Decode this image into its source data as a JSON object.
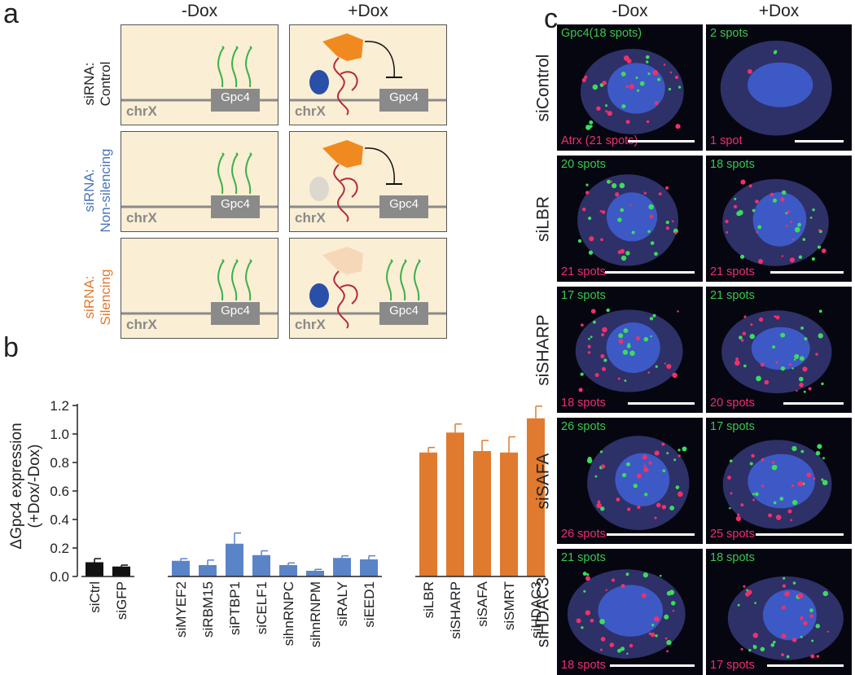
{
  "panel_a": {
    "letter": "a",
    "col_minus": "-Dox",
    "col_plus": "+Dox",
    "gene": "Gpc4",
    "chrom": "chrX",
    "rows": [
      {
        "line1": "siRNA:",
        "line2": "Control",
        "color": "#222222"
      },
      {
        "line1": "siRNA:",
        "line2": "Non-silencing",
        "color": "#4a74b8"
      },
      {
        "line1": "siRNA:",
        "line2": "Silencing",
        "color": "#e07a2e"
      }
    ]
  },
  "panel_b": {
    "letter": "b"
  },
  "chart_data": {
    "type": "bar",
    "title": "",
    "ylabel": "ΔGpc4 expression (+Dox/-Dox)",
    "ylabel_line1": "ΔGpc4 expression",
    "ylabel_line2": "(+Dox/-Dox)",
    "xlabel": "",
    "ylim": [
      0,
      1.2
    ],
    "yticks": [
      "0.0",
      "0.2",
      "0.4",
      "0.6",
      "0.8",
      "1.0",
      "1.2"
    ],
    "yticks_values": [
      0.0,
      0.2,
      0.4,
      0.6,
      0.8,
      1.0,
      1.2
    ],
    "groups": [
      {
        "name": "controls",
        "color": "#111111",
        "categories": [
          "siCtrl",
          "siGFP"
        ],
        "values": [
          0.1,
          0.07
        ],
        "errors": [
          0.025,
          0.01
        ]
      },
      {
        "name": "non-silencing",
        "color": "#5b84c8",
        "categories": [
          "siMYEF2",
          "siRBM15",
          "siPTBP1",
          "siCELF1",
          "sihnRNPC",
          "sihnRNPM",
          "siRALY",
          "siEED1"
        ],
        "values": [
          0.11,
          0.08,
          0.23,
          0.15,
          0.08,
          0.04,
          0.13,
          0.12
        ],
        "errors": [
          0.015,
          0.035,
          0.075,
          0.03,
          0.015,
          0.01,
          0.015,
          0.025
        ]
      },
      {
        "name": "silencing",
        "color": "#e07a2e",
        "categories": [
          "siLBR",
          "siSHARP",
          "siSAFA",
          "siSMRT",
          "siHDAC3"
        ],
        "values": [
          0.87,
          1.01,
          0.88,
          0.87,
          1.11
        ],
        "errors": [
          0.035,
          0.06,
          0.075,
          0.11,
          0.085
        ]
      }
    ]
  },
  "panel_c": {
    "letter": "c",
    "col_minus": "-Dox",
    "col_plus": "+Dox",
    "rows": [
      {
        "label": "siControl",
        "minus": {
          "top": "Gpc4(18 spots)",
          "bottom": "Atrx (21 spots)"
        },
        "plus": {
          "top": "2 spots",
          "bottom": "1 spot"
        }
      },
      {
        "label": "siLBR",
        "minus": {
          "top": "20 spots",
          "bottom": "21 spots"
        },
        "plus": {
          "top": "18 spots",
          "bottom": "21 spots"
        }
      },
      {
        "label": "siSHARP",
        "minus": {
          "top": "17 spots",
          "bottom": "18 spots"
        },
        "plus": {
          "top": "21 spots",
          "bottom": "20 spots"
        }
      },
      {
        "label": "siSAFA",
        "minus": {
          "top": "26 spots",
          "bottom": "26 spots"
        },
        "plus": {
          "top": "17 spots",
          "bottom": "25 spots"
        }
      },
      {
        "label": "siHDAC3",
        "minus": {
          "top": "21 spots",
          "bottom": "18 spots"
        },
        "plus": {
          "top": "18 spots",
          "bottom": "17 spots"
        }
      }
    ]
  }
}
